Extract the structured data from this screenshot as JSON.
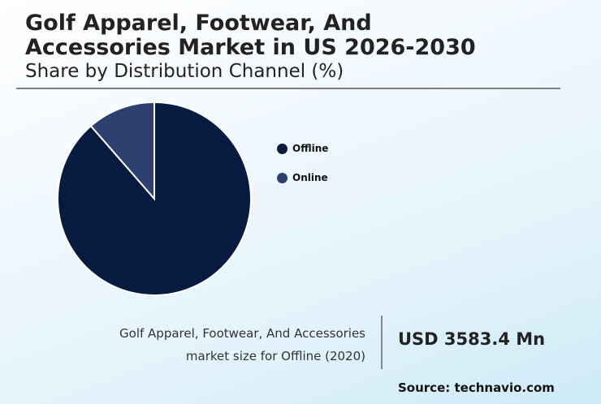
{
  "header": {
    "title_line1": "Golf Apparel, Footwear, And",
    "title_line2": "Accessories Market in US 2026-2030",
    "subtitle": "Share by Distribution Channel (%)"
  },
  "legend": {
    "items": [
      {
        "label": "Offline",
        "color": "#071b40"
      },
      {
        "label": "Online",
        "color": "#2c4170"
      }
    ]
  },
  "footer": {
    "desc_line1": "Golf Apparel, Footwear, And Accessories",
    "desc_line2": "market size for Offline (2020)",
    "value": "USD 3583.4 Mn",
    "source": "Source: technavio.com"
  },
  "chart_data": {
    "type": "pie",
    "title": "Golf Apparel, Footwear, And Accessories Market in US 2026-2030",
    "subtitle": "Share by Distribution Channel (%)",
    "categories": [
      "Offline",
      "Online"
    ],
    "values": [
      88.6,
      11.4
    ],
    "colors": [
      "#071b40",
      "#2c4170"
    ],
    "legend_position": "right",
    "start_angle_deg": 0,
    "direction": "clockwise"
  }
}
